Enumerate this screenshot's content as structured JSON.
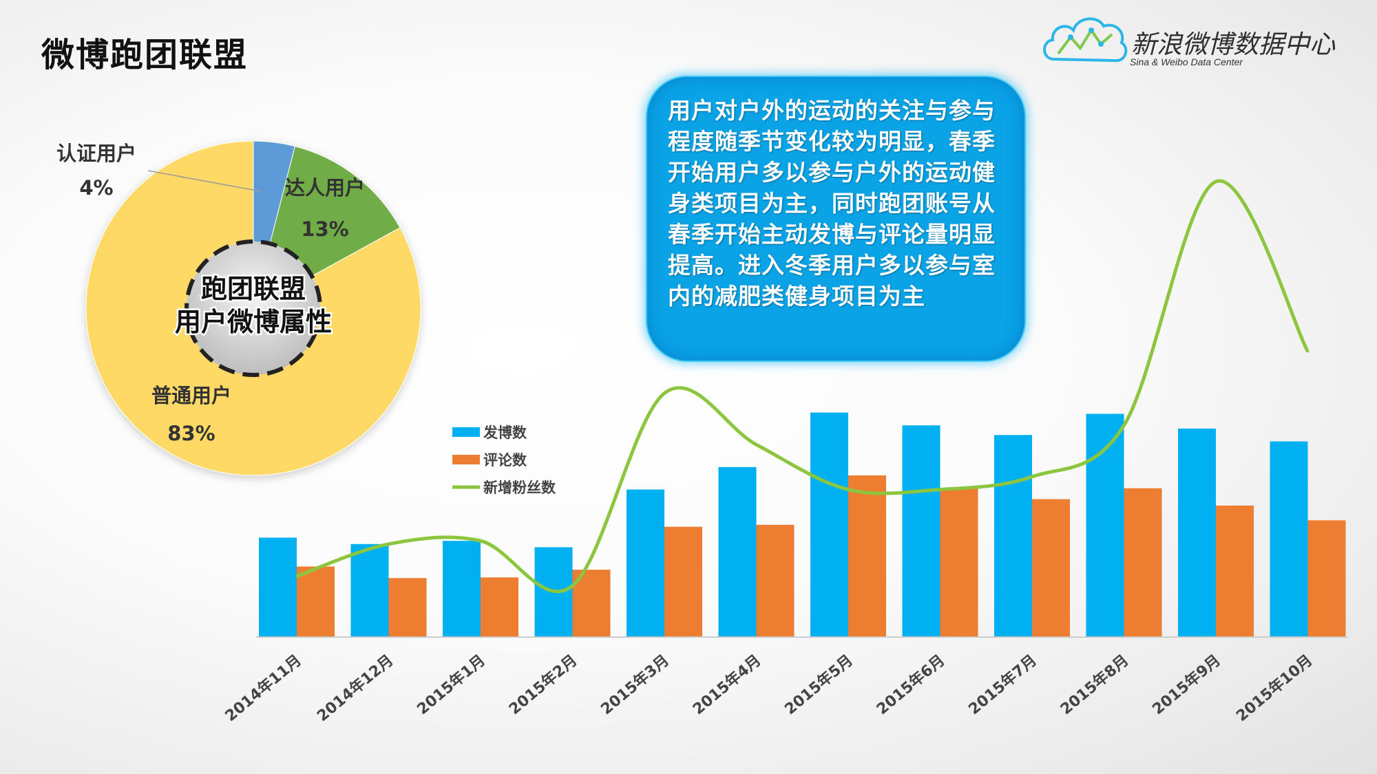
{
  "page": {
    "title": "微博跑团联盟"
  },
  "logo": {
    "name": "新浪微博数据中心",
    "subtitle": "Sina & Weibo Data Center",
    "icon": "cloud-chart-icon"
  },
  "callout": {
    "text": "用户对户外的运动的关注与参与程度随季节变化较为明显，春季开始用户多以参与户外的运动健身类项目为主，同时跑团账号从春季开始主动发博与评论量明显提高。进入冬季用户多以参与室内的减肥类健身项目为主"
  },
  "colors": {
    "pie_certified": "#5b9bd5",
    "pie_expert": "#70ad47",
    "pie_ordinary": "#ffd966",
    "posts": "#00b0f0",
    "comments": "#ed7d31",
    "fans": "#8cc63f",
    "callout": "#0aa3e6"
  },
  "chart_data": [
    {
      "type": "pie",
      "title": "跑团联盟用户微博属性",
      "slices": [
        {
          "name": "认证用户",
          "value": 4,
          "label": "4%"
        },
        {
          "name": "达人用户",
          "value": 13,
          "label": "13%"
        },
        {
          "name": "普通用户",
          "value": 83,
          "label": "83%"
        }
      ]
    },
    {
      "type": "bar",
      "categories": [
        "2014年11月",
        "2014年12月",
        "2015年1月",
        "2015年2月",
        "2015年3月",
        "2015年4月",
        "2015年5月",
        "2015年6月",
        "2015年7月",
        "2015年8月",
        "2015年9月",
        "2015年10月"
      ],
      "series": [
        {
          "name": "发博数",
          "type": "bar",
          "values": [
            155,
            145,
            150,
            140,
            230,
            265,
            350,
            330,
            315,
            348,
            325,
            305
          ]
        },
        {
          "name": "评论数",
          "type": "bar",
          "values": [
            110,
            92,
            93,
            105,
            172,
            175,
            252,
            232,
            215,
            232,
            205,
            182
          ]
        },
        {
          "name": "新增粉丝数",
          "type": "line",
          "values": [
            95,
            145,
            150,
            80,
            380,
            300,
            230,
            230,
            250,
            330,
            710,
            445
          ]
        }
      ],
      "ylim": [
        0,
        800
      ],
      "legend": "left-of-bars"
    }
  ]
}
